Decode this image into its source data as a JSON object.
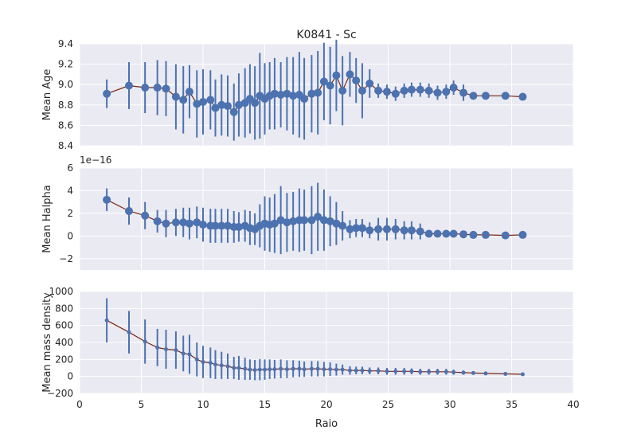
{
  "figure_title": "K0841 - Sc",
  "colors": {
    "panel_bg": "#EAEAF2",
    "grid": "#FFFFFF",
    "marker": "#4C72B0",
    "line": "#7B2410",
    "text": "#262626"
  },
  "chart_data": [
    {
      "type": "line",
      "panel": "age",
      "title": "K0841 - Sc",
      "xlabel": "",
      "ylabel": "Mean Age",
      "xlim": [
        0,
        40
      ],
      "ylim": [
        8.4,
        9.4
      ],
      "xticks": [],
      "yticks": [
        8.4,
        8.6,
        8.8,
        9.0,
        9.2,
        9.4
      ],
      "ytick_labels": [
        "8.4",
        "8.6",
        "8.8",
        "9.0",
        "9.2",
        "9.4"
      ],
      "grid": true,
      "marker_size": "large",
      "x": [
        2.2,
        4.0,
        5.3,
        6.3,
        7.0,
        7.8,
        8.4,
        8.9,
        9.5,
        10.0,
        10.6,
        11.0,
        11.5,
        12.0,
        12.5,
        12.9,
        13.4,
        13.8,
        14.2,
        14.6,
        15.0,
        15.4,
        15.8,
        16.3,
        16.8,
        17.3,
        17.8,
        18.2,
        18.8,
        19.3,
        19.8,
        20.3,
        20.8,
        21.3,
        21.9,
        22.4,
        22.9,
        23.5,
        24.2,
        24.9,
        25.6,
        26.3,
        26.9,
        27.6,
        28.3,
        29.0,
        29.7,
        30.3,
        31.1,
        31.9,
        32.9,
        34.5,
        35.9
      ],
      "y": [
        8.91,
        8.99,
        8.97,
        8.97,
        8.96,
        8.88,
        8.85,
        8.93,
        8.81,
        8.83,
        8.85,
        8.77,
        8.8,
        8.79,
        8.73,
        8.8,
        8.82,
        8.86,
        8.82,
        8.89,
        8.86,
        8.89,
        8.91,
        8.9,
        8.91,
        8.89,
        8.9,
        8.86,
        8.91,
        8.92,
        9.03,
        8.99,
        9.09,
        8.94,
        9.1,
        9.04,
        8.94,
        9.01,
        8.94,
        8.93,
        8.91,
        8.94,
        8.95,
        8.95,
        8.94,
        8.92,
        8.93,
        8.97,
        8.92,
        8.89,
        8.89,
        8.89,
        8.88
      ],
      "yerr": [
        0.14,
        0.23,
        0.25,
        0.27,
        0.27,
        0.32,
        0.33,
        0.26,
        0.33,
        0.32,
        0.29,
        0.28,
        0.3,
        0.3,
        0.28,
        0.31,
        0.34,
        0.34,
        0.36,
        0.42,
        0.35,
        0.33,
        0.35,
        0.32,
        0.36,
        0.38,
        0.42,
        0.4,
        0.38,
        0.41,
        0.38,
        0.38,
        0.35,
        0.34,
        0.22,
        0.22,
        0.27,
        0.14,
        0.07,
        0.07,
        0.07,
        0.07,
        0.07,
        0.07,
        0.07,
        0.07,
        0.07,
        0.07,
        0.08,
        0.0,
        0.0,
        0.0,
        0.0
      ]
    },
    {
      "type": "line",
      "panel": "halpha",
      "xlabel": "",
      "ylabel": "Mean Halpha",
      "offset_label": "1e−16",
      "xlim": [
        0,
        40
      ],
      "ylim": [
        -3,
        6
      ],
      "xticks": [],
      "yticks": [
        -2,
        0,
        2,
        4,
        6
      ],
      "ytick_labels": [
        "−2",
        "0",
        "2",
        "4",
        "6"
      ],
      "grid": true,
      "marker_size": "large",
      "x": [
        2.2,
        4.0,
        5.3,
        6.3,
        7.0,
        7.8,
        8.4,
        8.9,
        9.5,
        10.0,
        10.6,
        11.0,
        11.5,
        12.0,
        12.5,
        12.9,
        13.4,
        13.8,
        14.2,
        14.6,
        15.0,
        15.4,
        15.8,
        16.3,
        16.8,
        17.3,
        17.8,
        18.2,
        18.8,
        19.3,
        19.8,
        20.3,
        20.8,
        21.3,
        21.9,
        22.4,
        22.9,
        23.5,
        24.2,
        24.9,
        25.6,
        26.3,
        26.9,
        27.6,
        28.3,
        29.0,
        29.7,
        30.3,
        31.1,
        31.9,
        32.9,
        34.5,
        35.9
      ],
      "y": [
        3.2,
        2.2,
        1.8,
        1.3,
        1.1,
        1.2,
        1.2,
        1.1,
        1.2,
        1.0,
        0.9,
        0.9,
        0.9,
        0.9,
        0.8,
        0.8,
        0.9,
        0.7,
        0.6,
        0.9,
        1.1,
        1.0,
        1.1,
        1.4,
        1.2,
        1.3,
        1.4,
        1.4,
        1.4,
        1.7,
        1.4,
        1.3,
        1.1,
        0.9,
        0.6,
        0.7,
        0.7,
        0.5,
        0.6,
        0.6,
        0.6,
        0.5,
        0.5,
        0.4,
        0.2,
        0.2,
        0.2,
        0.2,
        0.15,
        0.1,
        0.1,
        0.05,
        0.1
      ],
      "yerr": [
        1.0,
        1.2,
        1.2,
        1.0,
        1.2,
        1.2,
        1.3,
        1.4,
        1.4,
        1.5,
        1.5,
        1.5,
        1.5,
        1.5,
        1.4,
        1.3,
        1.4,
        1.5,
        1.4,
        1.9,
        2.4,
        2.4,
        2.6,
        3.0,
        2.6,
        2.6,
        2.8,
        2.7,
        3.0,
        3.0,
        2.7,
        2.2,
        1.9,
        1.3,
        0.8,
        0.8,
        0.8,
        0.7,
        1.0,
        1.0,
        0.9,
        0.8,
        0.8,
        0.7,
        0.3,
        0.3,
        0.3,
        0.3,
        0.2,
        0.0,
        0.0,
        0.0,
        0.0
      ]
    },
    {
      "type": "line",
      "panel": "mass",
      "xlabel": "Raio",
      "ylabel": "Mean mass density",
      "xlim": [
        0,
        40
      ],
      "ylim": [
        -200,
        1000
      ],
      "xticks": [
        0,
        5,
        10,
        15,
        20,
        25,
        30,
        35,
        40
      ],
      "xtick_labels": [
        "0",
        "5",
        "10",
        "15",
        "20",
        "25",
        "30",
        "35",
        "40"
      ],
      "yticks": [
        -200,
        0,
        200,
        400,
        600,
        800,
        1000
      ],
      "ytick_labels": [
        "−200",
        "0",
        "200",
        "400",
        "600",
        "800",
        "1000"
      ],
      "grid": true,
      "marker_size": "small",
      "x": [
        2.2,
        4.0,
        5.3,
        6.3,
        7.0,
        7.8,
        8.4,
        8.9,
        9.5,
        10.0,
        10.6,
        11.0,
        11.5,
        12.0,
        12.5,
        12.9,
        13.4,
        13.8,
        14.2,
        14.6,
        15.0,
        15.4,
        15.8,
        16.3,
        16.8,
        17.3,
        17.8,
        18.2,
        18.8,
        19.3,
        19.8,
        20.3,
        20.8,
        21.3,
        21.9,
        22.4,
        22.9,
        23.5,
        24.2,
        24.9,
        25.6,
        26.3,
        26.9,
        27.6,
        28.3,
        29.0,
        29.7,
        30.3,
        31.1,
        31.9,
        32.9,
        34.5,
        35.9
      ],
      "y": [
        660,
        520,
        410,
        340,
        320,
        310,
        270,
        260,
        200,
        170,
        160,
        140,
        130,
        120,
        100,
        100,
        90,
        80,
        75,
        80,
        80,
        85,
        85,
        90,
        85,
        90,
        90,
        85,
        90,
        90,
        85,
        85,
        80,
        80,
        70,
        70,
        70,
        65,
        65,
        60,
        60,
        60,
        60,
        55,
        55,
        55,
        55,
        50,
        45,
        40,
        35,
        30,
        25
      ],
      "yerr": [
        260,
        250,
        260,
        220,
        230,
        220,
        210,
        230,
        200,
        190,
        180,
        170,
        160,
        150,
        130,
        140,
        130,
        120,
        120,
        125,
        120,
        115,
        110,
        110,
        105,
        100,
        95,
        90,
        90,
        90,
        85,
        80,
        70,
        60,
        50,
        45,
        45,
        40,
        40,
        40,
        40,
        40,
        35,
        35,
        35,
        35,
        35,
        30,
        25,
        0,
        0,
        0,
        0
      ]
    }
  ]
}
